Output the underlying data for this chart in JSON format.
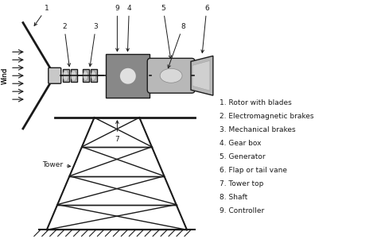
{
  "background_color": "#ffffff",
  "line_color": "#1a1a1a",
  "legend_items": [
    "1. Rotor with blades",
    "2. Electromagnetic brakes",
    "3. Mechanical brakes",
    "4. Gear box",
    "5. Generator",
    "6. Flap or tail vane",
    "7. Tower top",
    "8. Shaft",
    "9. Controller"
  ]
}
